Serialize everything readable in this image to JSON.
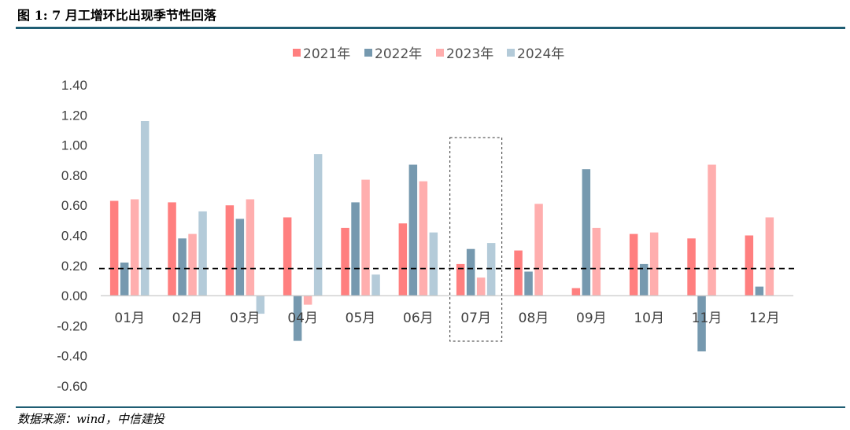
{
  "header": {
    "title": "图 1: 7 月工增环比出现季节性回落"
  },
  "footer": {
    "source": "数据来源：wind，中信建投"
  },
  "chart_data": {
    "type": "bar",
    "categories": [
      "01月",
      "02月",
      "03月",
      "04月",
      "05月",
      "06月",
      "07月",
      "08月",
      "09月",
      "10月",
      "11月",
      "12月"
    ],
    "series": [
      {
        "name": "2021年",
        "color": "#ff7f7f",
        "values": [
          0.63,
          0.62,
          0.6,
          0.52,
          0.45,
          0.48,
          0.21,
          0.3,
          0.05,
          0.41,
          0.38,
          0.4
        ]
      },
      {
        "name": "2022年",
        "color": "#7699af",
        "values": [
          0.22,
          0.38,
          0.51,
          -0.3,
          0.62,
          0.87,
          0.31,
          0.16,
          0.84,
          0.21,
          -0.37,
          0.06
        ]
      },
      {
        "name": "2023年",
        "color": "#ffaeae",
        "values": [
          0.64,
          0.41,
          0.64,
          -0.06,
          0.77,
          0.76,
          0.12,
          0.61,
          0.45,
          0.42,
          0.87,
          0.52
        ]
      },
      {
        "name": "2024年",
        "color": "#b4cbd9",
        "values": [
          1.16,
          0.56,
          -0.12,
          0.94,
          0.14,
          0.42,
          0.35,
          null,
          null,
          null,
          null,
          null
        ]
      }
    ],
    "y_ticks": [
      "1.40",
      "1.20",
      "1.00",
      "0.80",
      "0.60",
      "0.40",
      "0.20",
      "0.00",
      "-0.20",
      "-0.40",
      "-0.60"
    ],
    "ylim": [
      -0.6,
      1.4
    ],
    "reference_line": {
      "value": 0.18,
      "style": "dashed",
      "color": "#000000"
    },
    "highlight_category": "07月",
    "grid": false,
    "legend_position": "top-center",
    "xlabel": "",
    "ylabel": ""
  }
}
